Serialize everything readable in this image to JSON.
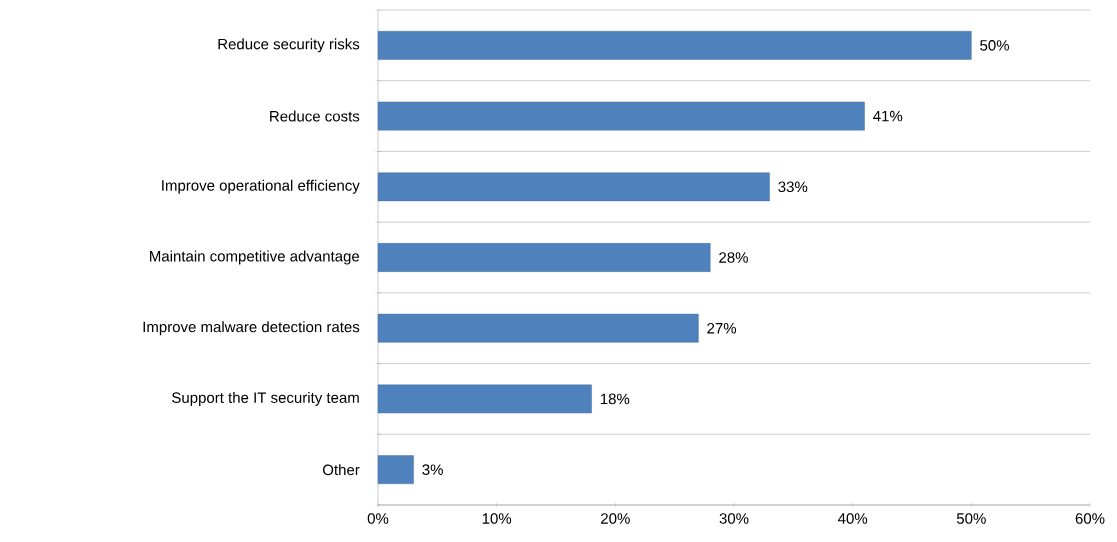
{
  "chart_data": {
    "type": "bar",
    "orientation": "horizontal",
    "categories": [
      "Reduce security risks",
      "Reduce costs",
      "Improve operational efficiency",
      "Maintain competitive advantage",
      "Improve malware detection rates",
      "Support the IT security team",
      "Other"
    ],
    "values": [
      50,
      41,
      33,
      28,
      27,
      18,
      3
    ],
    "value_labels": [
      "50%",
      "41%",
      "33%",
      "28%",
      "27%",
      "18%",
      "3%"
    ],
    "color": "#4f81bd",
    "xlim": [
      0,
      60
    ],
    "xticks": [
      {
        "value": 0,
        "label": "0%"
      },
      {
        "value": 10,
        "label": "10%"
      },
      {
        "value": 20,
        "label": "20%"
      },
      {
        "value": 30,
        "label": "30%"
      },
      {
        "value": 40,
        "label": "40%"
      },
      {
        "value": 50,
        "label": "50%"
      },
      {
        "value": 60,
        "label": "60%"
      }
    ],
    "grid": "y"
  }
}
